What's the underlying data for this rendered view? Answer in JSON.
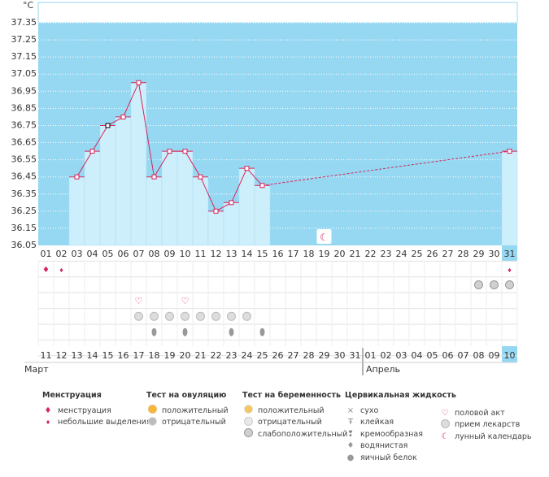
{
  "chart_data": {
    "type": "line",
    "ylabel": "°C",
    "ylim": [
      36.05,
      37.35
    ],
    "yticks": [
      "36.05",
      "36.15",
      "36.25",
      "36.35",
      "36.45",
      "36.55",
      "36.65",
      "36.75",
      "36.85",
      "36.95",
      "37.05",
      "37.15",
      "37.25",
      "37.35"
    ],
    "cycle_days": [
      "01",
      "02",
      "03",
      "04",
      "05",
      "06",
      "07",
      "08",
      "09",
      "10",
      "11",
      "12",
      "13",
      "14",
      "15",
      "16",
      "17",
      "18",
      "19",
      "20",
      "21",
      "22",
      "23",
      "24",
      "25",
      "26",
      "27",
      "28",
      "29",
      "30",
      "31"
    ],
    "dates": [
      "11",
      "12",
      "13",
      "14",
      "15",
      "16",
      "17",
      "18",
      "19",
      "20",
      "21",
      "22",
      "23",
      "24",
      "25",
      "26",
      "27",
      "28",
      "29",
      "30",
      "31",
      "01",
      "02",
      "03",
      "04",
      "05",
      "06",
      "07",
      "08",
      "09",
      "10"
    ],
    "red_dates_index": [
      0,
      6,
      7,
      13,
      14,
      20,
      21,
      27,
      28
    ],
    "highlight_index": 30,
    "months": [
      "Март",
      "Апрель"
    ],
    "series": [
      {
        "values": [
          null,
          null,
          36.45,
          36.6,
          36.75,
          36.8,
          37.0,
          36.45,
          36.6,
          36.6,
          36.45,
          36.25,
          36.3,
          36.5,
          36.4,
          null,
          null,
          null,
          null,
          null,
          null,
          null,
          null,
          null,
          null,
          null,
          null,
          null,
          null,
          null,
          36.6
        ]
      }
    ],
    "dashed_from_index": 14,
    "selected_index": 4,
    "moon_day_index": 18,
    "rows": {
      "menstruation": {
        "heavy": [
          0
        ],
        "light": [
          1,
          30
        ]
      },
      "pregnancy_test": {
        "weak": [
          28,
          29,
          30
        ]
      },
      "intercourse": [
        6,
        9
      ],
      "medication": [
        6,
        7,
        8,
        9,
        10,
        11,
        12,
        13
      ],
      "mucus_watery": [
        7,
        9,
        12,
        14
      ]
    }
  },
  "legend": {
    "menstruation": {
      "title": "Менструация",
      "items": [
        "менструация",
        "небольшие выделения"
      ]
    },
    "ovulation": {
      "title": "Тест на овуляцию",
      "items": [
        "положительный",
        "отрицательный"
      ]
    },
    "pregnancy": {
      "title": "Тест на беременность",
      "items": [
        "положительный",
        "отрицательный",
        "слабоположительный"
      ]
    },
    "mucus": {
      "title": "Цервикальная жидкость",
      "items": [
        "сухо",
        "клейкая",
        "кремообразная",
        "водянистая",
        "яичный белок"
      ]
    },
    "other": {
      "items": [
        "половой акт",
        "прием лекарств",
        "лунный календарь"
      ]
    }
  },
  "colors": {
    "plot_bg": "#96d8f2",
    "bar": "#cdeefb",
    "line": "#d8245a",
    "red": "#d8245a",
    "highlight": "#96d8f2"
  }
}
